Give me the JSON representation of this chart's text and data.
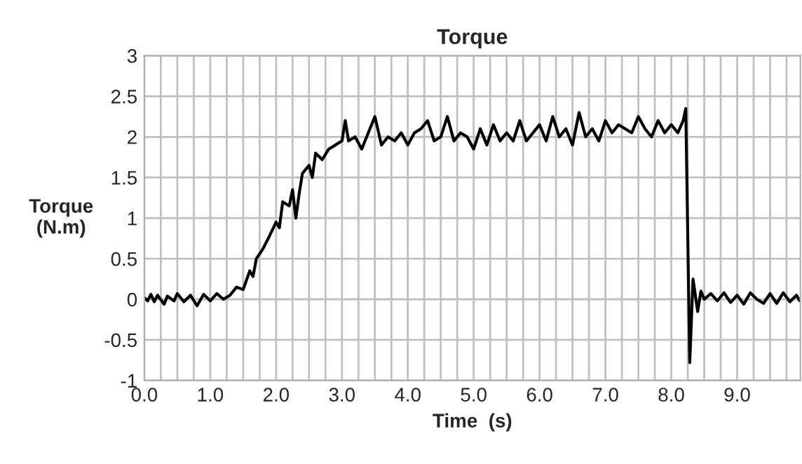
{
  "chart_data": {
    "type": "line",
    "title": "Torque",
    "xlabel": "Time  (s)",
    "ylabel": "Torque\n(N.m)",
    "x": [
      0.0,
      0.05,
      0.1,
      0.15,
      0.2,
      0.3,
      0.35,
      0.45,
      0.5,
      0.6,
      0.7,
      0.8,
      0.9,
      1.0,
      1.1,
      1.2,
      1.3,
      1.4,
      1.5,
      1.6,
      1.65,
      1.7,
      1.8,
      1.9,
      2.0,
      2.05,
      2.1,
      2.2,
      2.25,
      2.3,
      2.35,
      2.4,
      2.5,
      2.55,
      2.6,
      2.7,
      2.8,
      2.9,
      3.0,
      3.05,
      3.1,
      3.2,
      3.3,
      3.4,
      3.5,
      3.6,
      3.7,
      3.8,
      3.9,
      4.0,
      4.1,
      4.2,
      4.3,
      4.4,
      4.5,
      4.6,
      4.7,
      4.8,
      4.9,
      5.0,
      5.1,
      5.2,
      5.3,
      5.4,
      5.5,
      5.6,
      5.7,
      5.8,
      5.9,
      6.0,
      6.1,
      6.2,
      6.3,
      6.4,
      6.5,
      6.6,
      6.7,
      6.8,
      6.9,
      7.0,
      7.1,
      7.2,
      7.3,
      7.4,
      7.5,
      7.6,
      7.7,
      7.8,
      7.9,
      8.0,
      8.1,
      8.18,
      8.22,
      8.28,
      8.33,
      8.4,
      8.45,
      8.5,
      8.6,
      8.7,
      8.8,
      8.9,
      9.0,
      9.1,
      9.2,
      9.3,
      9.4,
      9.5,
      9.6,
      9.7,
      9.8,
      9.9,
      9.95
    ],
    "series": [
      {
        "color": "#000000",
        "values": [
          0.02,
          -0.02,
          0.06,
          -0.03,
          0.05,
          -0.06,
          0.04,
          -0.02,
          0.07,
          -0.03,
          0.05,
          -0.08,
          0.06,
          -0.02,
          0.07,
          0.0,
          0.05,
          0.15,
          0.12,
          0.35,
          0.28,
          0.5,
          0.62,
          0.78,
          0.95,
          0.88,
          1.2,
          1.15,
          1.35,
          1.0,
          1.3,
          1.55,
          1.65,
          1.5,
          1.8,
          1.72,
          1.85,
          1.9,
          1.95,
          2.2,
          1.95,
          2.0,
          1.85,
          2.05,
          2.25,
          1.9,
          2.0,
          1.95,
          2.05,
          1.9,
          2.05,
          2.1,
          2.2,
          1.95,
          2.0,
          2.25,
          1.95,
          2.05,
          2.0,
          1.85,
          2.1,
          1.9,
          2.15,
          1.95,
          2.05,
          1.95,
          2.2,
          1.95,
          2.05,
          2.15,
          1.95,
          2.25,
          2.0,
          2.1,
          1.9,
          2.3,
          2.0,
          2.1,
          1.95,
          2.2,
          2.05,
          2.15,
          2.1,
          2.05,
          2.25,
          2.1,
          2.0,
          2.2,
          2.05,
          2.15,
          2.05,
          2.2,
          2.35,
          -0.78,
          0.25,
          -0.15,
          0.1,
          0.0,
          0.07,
          -0.02,
          0.08,
          -0.04,
          0.05,
          -0.06,
          0.08,
          0.0,
          -0.05,
          0.07,
          -0.05,
          0.08,
          -0.03,
          0.05,
          -0.02
        ]
      }
    ],
    "xlim": [
      0,
      9.96
    ],
    "xticks": [
      {
        "value": 0.0,
        "label": "0.0"
      },
      {
        "value": 1.0,
        "label": "1.0"
      },
      {
        "value": 2.0,
        "label": "2.0"
      },
      {
        "value": 3.0,
        "label": "3.0"
      },
      {
        "value": 4.0,
        "label": "4.0"
      },
      {
        "value": 5.0,
        "label": "5.0"
      },
      {
        "value": 6.0,
        "label": "6.0"
      },
      {
        "value": 7.0,
        "label": "7.0"
      },
      {
        "value": 8.0,
        "label": "8.0"
      },
      {
        "value": 9.0,
        "label": "9.0"
      },
      {
        "value": 0.25,
        "label": null
      },
      {
        "value": 0.5,
        "label": null
      },
      {
        "value": 0.75,
        "label": null
      },
      {
        "value": 1.25,
        "label": null
      },
      {
        "value": 1.5,
        "label": null
      },
      {
        "value": 1.75,
        "label": null
      },
      {
        "value": 2.25,
        "label": null
      },
      {
        "value": 2.5,
        "label": null
      },
      {
        "value": 2.75,
        "label": null
      },
      {
        "value": 3.25,
        "label": null
      },
      {
        "value": 3.5,
        "label": null
      },
      {
        "value": 3.75,
        "label": null
      },
      {
        "value": 4.25,
        "label": null
      },
      {
        "value": 4.5,
        "label": null
      },
      {
        "value": 4.75,
        "label": null
      },
      {
        "value": 5.25,
        "label": null
      },
      {
        "value": 5.5,
        "label": null
      },
      {
        "value": 5.75,
        "label": null
      },
      {
        "value": 6.25,
        "label": null
      },
      {
        "value": 6.5,
        "label": null
      },
      {
        "value": 6.75,
        "label": null
      },
      {
        "value": 7.25,
        "label": null
      },
      {
        "value": 7.5,
        "label": null
      },
      {
        "value": 7.75,
        "label": null
      },
      {
        "value": 8.25,
        "label": null
      },
      {
        "value": 8.5,
        "label": null
      },
      {
        "value": 8.75,
        "label": null
      },
      {
        "value": 9.25,
        "label": null
      },
      {
        "value": 9.5,
        "label": null
      },
      {
        "value": 9.75,
        "label": null
      }
    ],
    "ylim": [
      -1,
      3
    ],
    "yticks": [
      -1,
      -0.5,
      0,
      0.5,
      1,
      1.5,
      2,
      2.5,
      3
    ],
    "grid": true,
    "line_style": "solid",
    "marker": "none"
  }
}
